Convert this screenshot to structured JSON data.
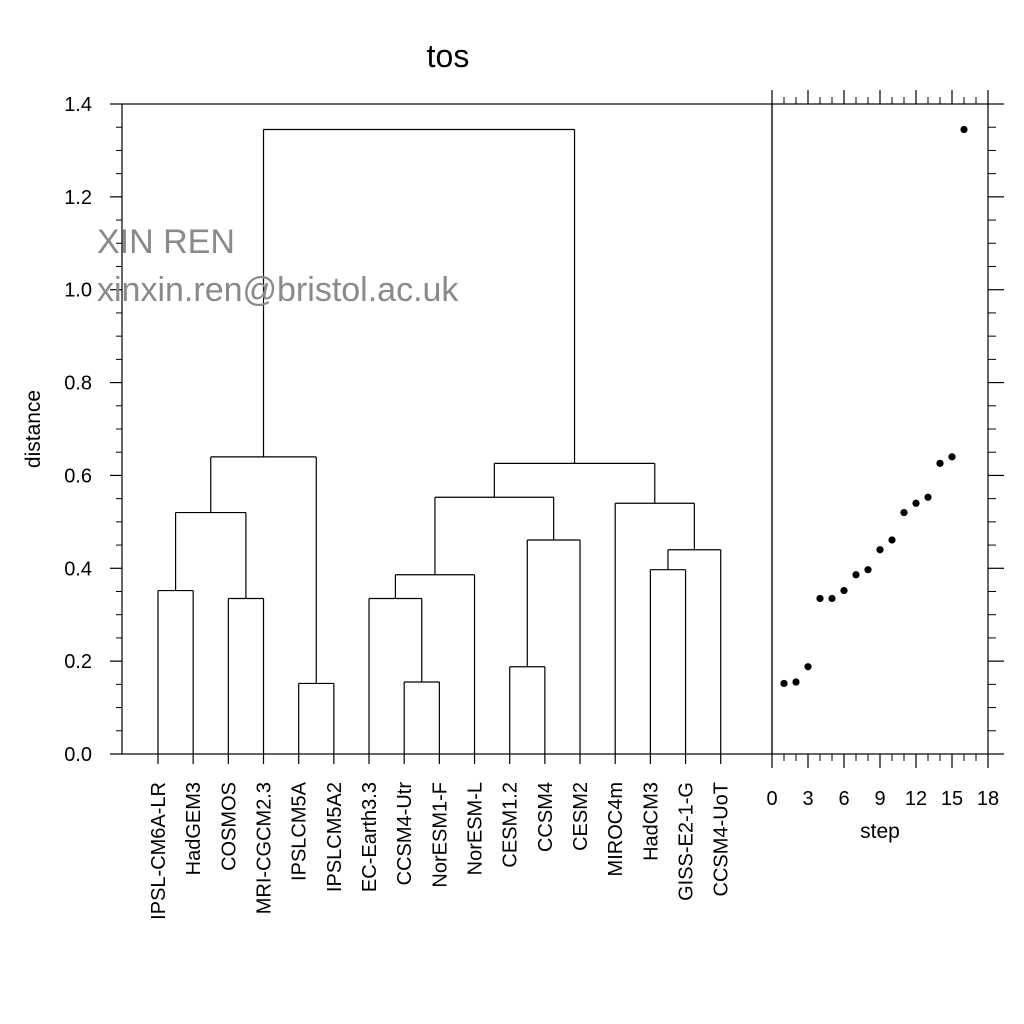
{
  "chart_data": [
    {
      "type": "dendrogram",
      "title": "tos",
      "ylabel": "distance",
      "ylim": [
        0,
        1.4
      ],
      "yticks": [
        "0.0",
        "0.2",
        "0.4",
        "0.6",
        "0.8",
        "1.0",
        "1.2",
        "1.4"
      ],
      "leaves": [
        "IPSL-CM6A-LR",
        "HadGEM3",
        "COSMOS",
        "MRI-CGCM2.3",
        "IPSLCM5A",
        "IPSLCM5A2",
        "EC-Earth3.3",
        "CCSM4-Utr",
        "NorESM1-F",
        "NorESM-L",
        "CESM1.2",
        "CCSM4",
        "CESM2",
        "MIROC4m",
        "HadCM3",
        "GISS-E2-1-G",
        "CCSM4-UoT"
      ],
      "tree": {
        "h": 1.345,
        "children": [
          {
            "h": 0.64,
            "children": [
              {
                "h": 0.52,
                "children": [
                  {
                    "h": 0.352,
                    "children": [
                      {
                        "leaf": 0
                      },
                      {
                        "leaf": 1
                      }
                    ]
                  },
                  {
                    "h": 0.335,
                    "children": [
                      {
                        "leaf": 2
                      },
                      {
                        "leaf": 3
                      }
                    ]
                  }
                ]
              },
              {
                "h": 0.152,
                "children": [
                  {
                    "leaf": 4
                  },
                  {
                    "leaf": 5
                  }
                ]
              }
            ]
          },
          {
            "h": 0.626,
            "children": [
              {
                "h": 0.553,
                "children": [
                  {
                    "h": 0.386,
                    "children": [
                      {
                        "h": 0.335,
                        "children": [
                          {
                            "leaf": 6
                          },
                          {
                            "h": 0.155,
                            "children": [
                              {
                                "leaf": 7
                              },
                              {
                                "leaf": 8
                              }
                            ]
                          }
                        ]
                      },
                      {
                        "leaf": 9
                      }
                    ]
                  },
                  {
                    "h": 0.461,
                    "children": [
                      {
                        "h": 0.188,
                        "children": [
                          {
                            "leaf": 10
                          },
                          {
                            "leaf": 11
                          }
                        ]
                      },
                      {
                        "leaf": 12
                      }
                    ]
                  }
                ]
              },
              {
                "h": 0.54,
                "children": [
                  {
                    "leaf": 13
                  },
                  {
                    "h": 0.44,
                    "children": [
                      {
                        "h": 0.397,
                        "children": [
                          {
                            "leaf": 14
                          },
                          {
                            "leaf": 15
                          }
                        ]
                      },
                      {
                        "leaf": 16
                      }
                    ]
                  }
                ]
              }
            ]
          }
        ]
      }
    },
    {
      "type": "scatter",
      "xlabel": "step",
      "xlim": [
        0,
        18
      ],
      "ylim": [
        0,
        1.4
      ],
      "xticks": [
        "0",
        "3",
        "6",
        "9",
        "12",
        "15",
        "18"
      ],
      "x": [
        1,
        2,
        3,
        4,
        5,
        6,
        7,
        8,
        9,
        10,
        11,
        12,
        13,
        14,
        15,
        16
      ],
      "y": [
        0.152,
        0.155,
        0.188,
        0.335,
        0.335,
        0.352,
        0.386,
        0.397,
        0.44,
        0.461,
        0.52,
        0.54,
        0.553,
        0.626,
        0.64,
        1.345
      ]
    }
  ],
  "watermark": {
    "name": "XIN REN",
    "email": "xinxin.ren@bristol.ac.uk",
    "color": "#8a8a8a"
  }
}
